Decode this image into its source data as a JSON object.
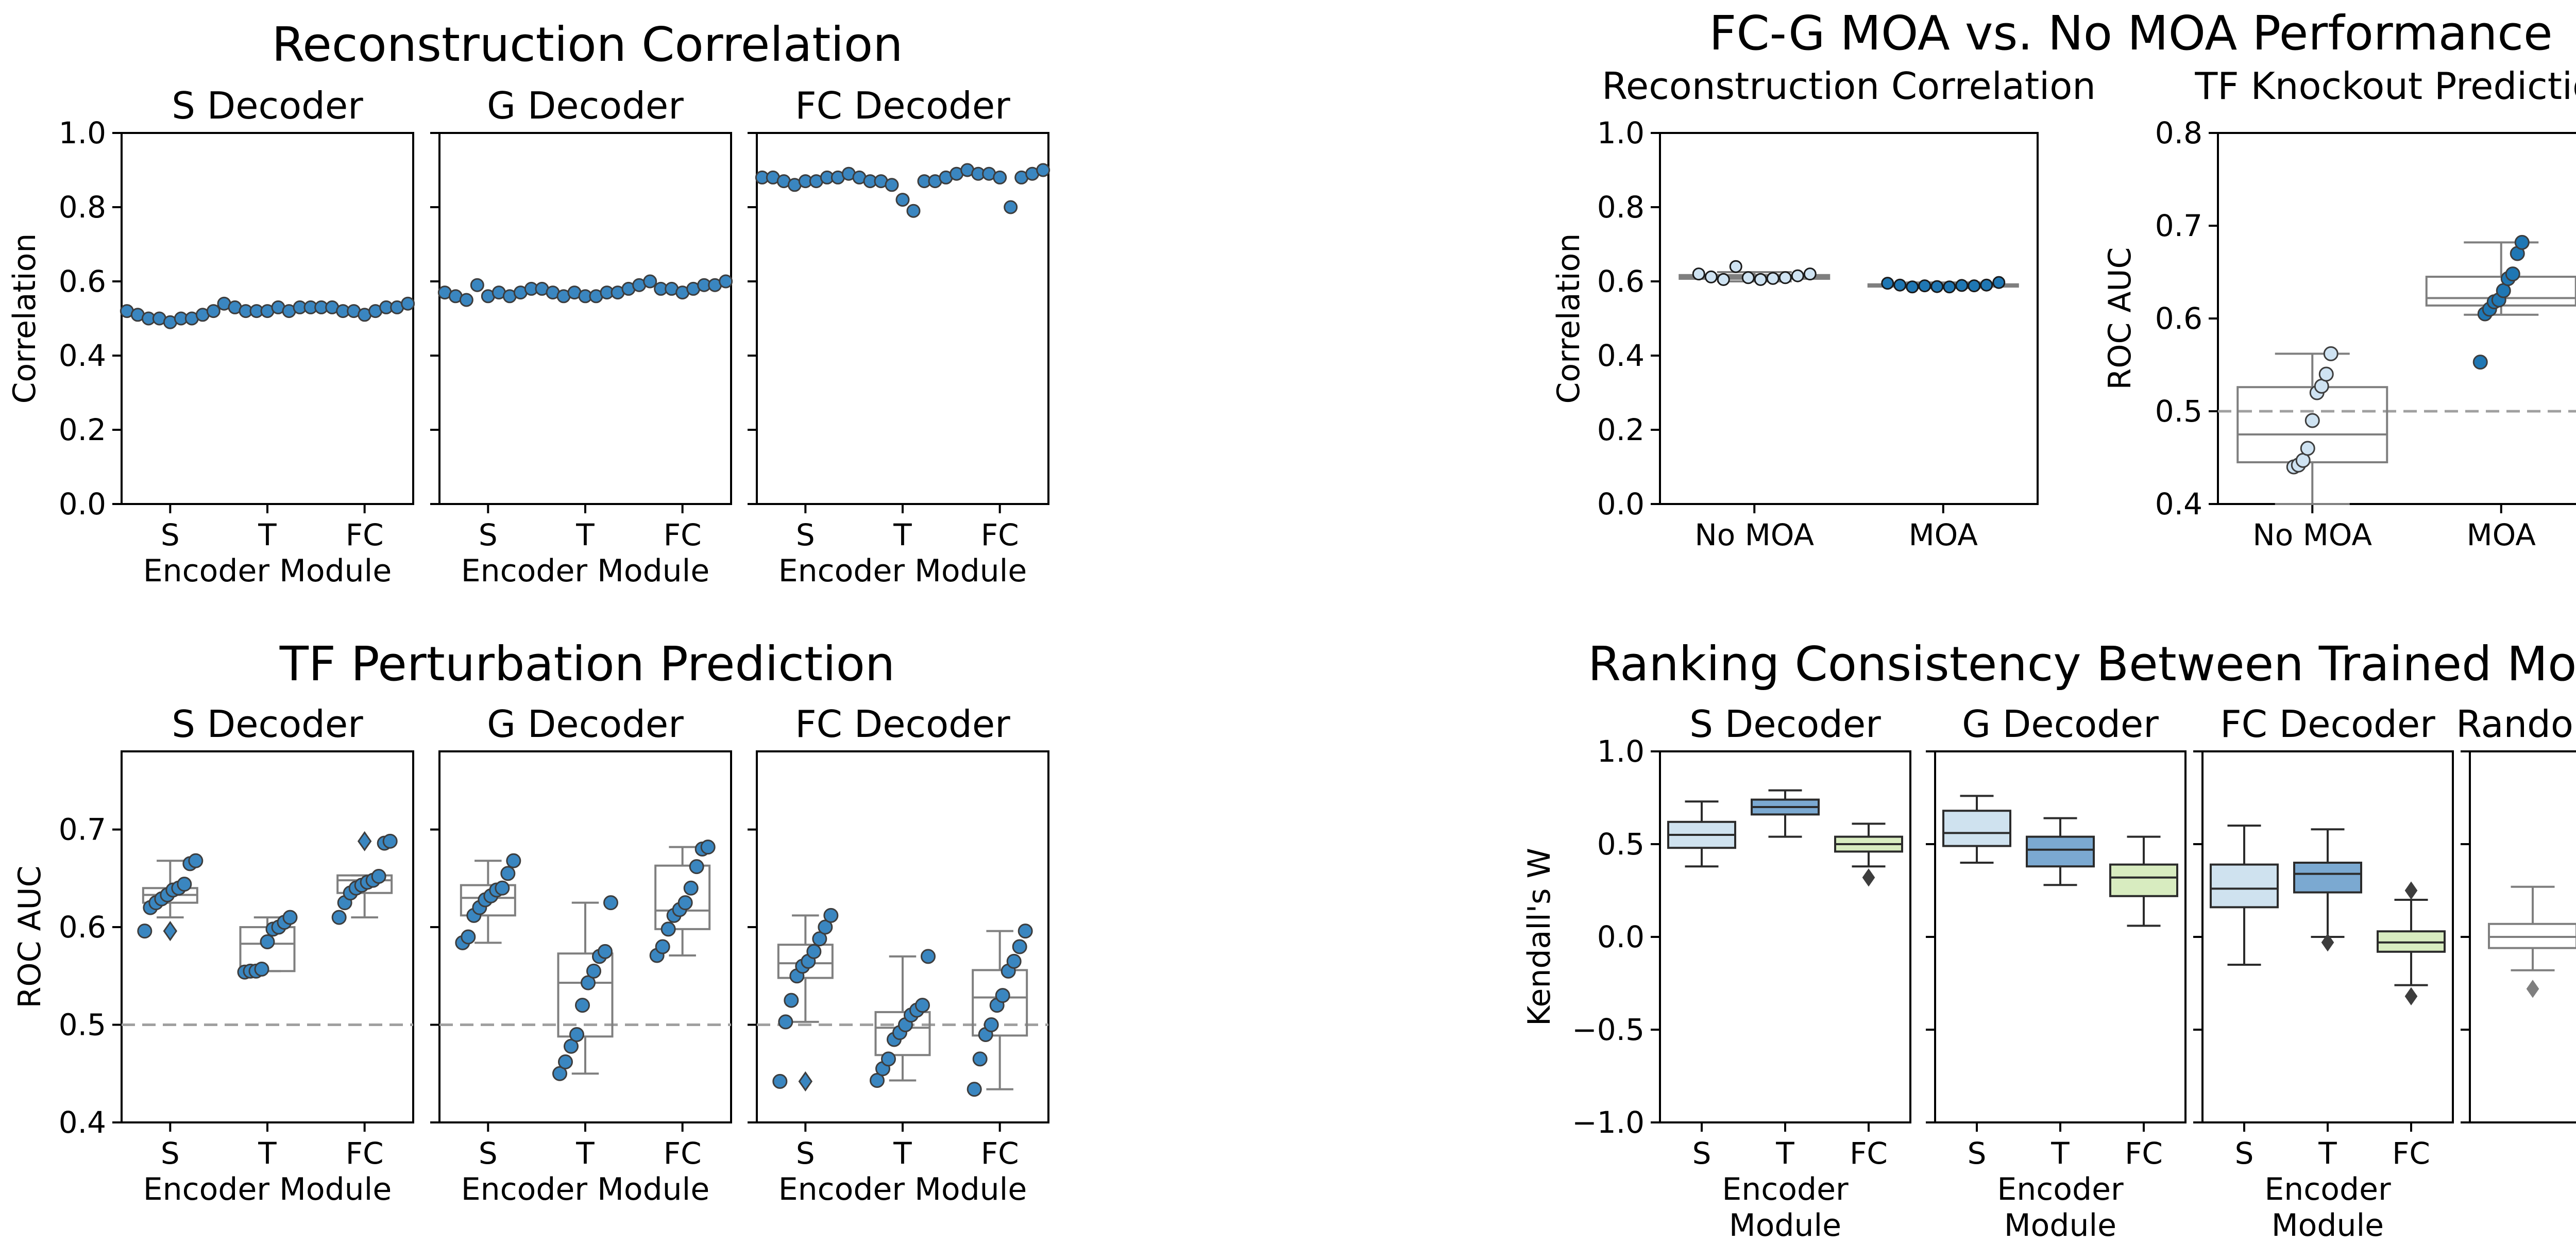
{
  "chart_data": [
    {
      "group": "Reconstruction Correlation",
      "type": "scatter",
      "title": "Reconstruction Correlation",
      "ylabel": "Correlation",
      "xlabel": "Encoder Module",
      "ylim": [
        0,
        1
      ],
      "yticks": [
        "0.0",
        "0.2",
        "0.4",
        "0.6",
        "0.8",
        "1.0"
      ],
      "yticks_values": [
        0,
        0.2,
        0.4,
        0.6,
        0.8,
        1.0
      ],
      "panels": [
        {
          "name": "S Decoder",
          "categories": [
            "S",
            "T",
            "FC"
          ],
          "points": [
            [
              0.52,
              0.51,
              0.5,
              0.5,
              0.49,
              0.5,
              0.5,
              0.51,
              0.52
            ],
            [
              0.54,
              0.53,
              0.52,
              0.52,
              0.52,
              0.53,
              0.52,
              0.53,
              0.53
            ],
            [
              0.53,
              0.53,
              0.52,
              0.52,
              0.51,
              0.52,
              0.53,
              0.53,
              0.54
            ]
          ]
        },
        {
          "name": "G Decoder",
          "categories": [
            "S",
            "T",
            "FC"
          ],
          "points": [
            [
              0.57,
              0.56,
              0.55,
              0.59,
              0.56,
              0.57,
              0.56,
              0.57,
              0.58
            ],
            [
              0.58,
              0.57,
              0.56,
              0.57,
              0.56,
              0.56,
              0.57,
              0.57,
              0.58
            ],
            [
              0.59,
              0.6,
              0.58,
              0.58,
              0.57,
              0.58,
              0.59,
              0.59,
              0.6
            ]
          ]
        },
        {
          "name": "FC Decoder",
          "categories": [
            "S",
            "T",
            "FC"
          ],
          "points": [
            [
              0.88,
              0.88,
              0.87,
              0.86,
              0.87,
              0.87,
              0.88,
              0.88,
              0.89
            ],
            [
              0.88,
              0.87,
              0.87,
              0.86,
              0.82,
              0.79,
              0.87,
              0.87,
              0.88
            ],
            [
              0.89,
              0.9,
              0.89,
              0.89,
              0.88,
              0.8,
              0.88,
              0.89,
              0.9
            ]
          ]
        }
      ]
    },
    {
      "group": "TF Perturbation Prediction",
      "type": "box",
      "title": "TF Perturbation Prediction",
      "ylabel": "ROC AUC",
      "xlabel": "Encoder Module",
      "ylim": [
        0.4,
        0.78
      ],
      "yticks": [
        "0.4",
        "0.5",
        "0.6",
        "0.7"
      ],
      "yticks_values": [
        0.4,
        0.5,
        0.6,
        0.7
      ],
      "reference_line": 0.5,
      "panels": [
        {
          "name": "S Decoder",
          "categories": [
            "S",
            "T",
            "FC"
          ],
          "boxes": [
            {
              "whislo": 0.61,
              "q1": 0.625,
              "med": 0.633,
              "q3": 0.64,
              "whishi": 0.668
            },
            {
              "whislo": 0.555,
              "q1": 0.555,
              "med": 0.583,
              "q3": 0.6,
              "whishi": 0.61
            },
            {
              "whislo": 0.61,
              "q1": 0.635,
              "med": 0.648,
              "q3": 0.653,
              "whishi": 0.653
            }
          ],
          "fliers": [
            [
              0.596
            ],
            [],
            [
              0.688
            ]
          ],
          "points": [
            [
              0.668,
              0.665,
              0.644,
              0.64,
              0.638,
              0.633,
              0.629,
              0.625,
              0.62,
              0.596
            ],
            [
              0.61,
              0.605,
              0.6,
              0.598,
              0.585,
              0.557,
              0.555,
              0.555,
              0.554
            ],
            [
              0.688,
              0.686,
              0.652,
              0.648,
              0.646,
              0.643,
              0.64,
              0.635,
              0.625,
              0.61
            ]
          ]
        },
        {
          "name": "G Decoder",
          "categories": [
            "S",
            "T",
            "FC"
          ],
          "boxes": [
            {
              "whislo": 0.584,
              "q1": 0.612,
              "med": 0.63,
              "q3": 0.643,
              "whishi": 0.668
            },
            {
              "whislo": 0.45,
              "q1": 0.488,
              "med": 0.543,
              "q3": 0.573,
              "whishi": 0.625
            },
            {
              "whislo": 0.571,
              "q1": 0.598,
              "med": 0.617,
              "q3": 0.663,
              "whishi": 0.682
            }
          ],
          "fliers": [
            [],
            [],
            []
          ],
          "points": [
            [
              0.668,
              0.655,
              0.64,
              0.638,
              0.632,
              0.628,
              0.62,
              0.612,
              0.59,
              0.584
            ],
            [
              0.625,
              0.575,
              0.57,
              0.555,
              0.543,
              0.52,
              0.49,
              0.478,
              0.462,
              0.45
            ],
            [
              0.682,
              0.68,
              0.662,
              0.64,
              0.625,
              0.618,
              0.612,
              0.598,
              0.58,
              0.571
            ]
          ]
        },
        {
          "name": "FC Decoder",
          "categories": [
            "S",
            "T",
            "FC"
          ],
          "boxes": [
            {
              "whislo": 0.503,
              "q1": 0.548,
              "med": 0.563,
              "q3": 0.582,
              "whishi": 0.612
            },
            {
              "whislo": 0.443,
              "q1": 0.469,
              "med": 0.497,
              "q3": 0.513,
              "whishi": 0.57
            },
            {
              "whislo": 0.434,
              "q1": 0.489,
              "med": 0.528,
              "q3": 0.556,
              "whishi": 0.596
            }
          ],
          "fliers": [
            [
              0.442
            ],
            [],
            []
          ],
          "points": [
            [
              0.612,
              0.6,
              0.588,
              0.575,
              0.565,
              0.56,
              0.55,
              0.525,
              0.503,
              0.442
            ],
            [
              0.57,
              0.52,
              0.515,
              0.51,
              0.5,
              0.492,
              0.485,
              0.465,
              0.455,
              0.443
            ],
            [
              0.596,
              0.58,
              0.565,
              0.555,
              0.53,
              0.52,
              0.5,
              0.49,
              0.465,
              0.434
            ]
          ]
        }
      ]
    },
    {
      "group": "FC-G MOA vs. No MOA Performance",
      "type": "box",
      "title": "FC-G MOA vs. No MOA Performance",
      "panels": [
        {
          "name": "Reconstruction Correlation",
          "ylabel": "Correlation",
          "ylim": [
            0,
            1
          ],
          "yticks": [
            "0.0",
            "0.2",
            "0.4",
            "0.6",
            "0.8",
            "1.0"
          ],
          "yticks_values": [
            0,
            0.2,
            0.4,
            0.6,
            0.8,
            1.0
          ],
          "categories": [
            "No MOA",
            "MOA"
          ],
          "point_colors": [
            "#cfe3f2",
            "#1f77b4"
          ],
          "boxes": [
            {
              "whislo": 0.6,
              "q1": 0.607,
              "med": 0.612,
              "q3": 0.617,
              "whishi": 0.625
            },
            {
              "whislo": 0.582,
              "q1": 0.586,
              "med": 0.589,
              "q3": 0.592,
              "whishi": 0.597
            }
          ],
          "points": [
            [
              0.62,
              0.612,
              0.605,
              0.64,
              0.61,
              0.605,
              0.608,
              0.61,
              0.615,
              0.62
            ],
            [
              0.595,
              0.59,
              0.585,
              0.588,
              0.586,
              0.585,
              0.589,
              0.588,
              0.59,
              0.597
            ]
          ]
        },
        {
          "name": "TF Knockout Prediction",
          "ylabel": "ROC AUC",
          "ylim": [
            0.4,
            0.8
          ],
          "yticks": [
            "0.4",
            "0.5",
            "0.6",
            "0.7",
            "0.8"
          ],
          "yticks_values": [
            0.4,
            0.5,
            0.6,
            0.7,
            0.8
          ],
          "reference_line": 0.5,
          "categories": [
            "No MOA",
            "MOA"
          ],
          "point_colors": [
            "#cfe3f2",
            "#1f77b4"
          ],
          "boxes": [
            {
              "whislo": 0.4,
              "q1": 0.445,
              "med": 0.475,
              "q3": 0.526,
              "whishi": 0.562
            },
            {
              "whislo": 0.604,
              "q1": 0.614,
              "med": 0.622,
              "q3": 0.645,
              "whishi": 0.682
            }
          ],
          "points": [
            [
              0.562,
              0.54,
              0.527,
              0.52,
              0.49,
              0.46,
              0.447,
              0.442,
              0.44
            ],
            [
              0.682,
              0.67,
              0.648,
              0.643,
              0.63,
              0.62,
              0.618,
              0.61,
              0.605,
              0.553
            ]
          ]
        }
      ]
    },
    {
      "group": "Ranking Consistency Between Trained Models",
      "type": "box",
      "title": "Ranking Consistency Between Trained Models",
      "ylabel": "Kendall's W",
      "xlabel": [
        "Encoder",
        "Module"
      ],
      "ylim": [
        -1.0,
        1.0
      ],
      "yticks": [
        "−1.0",
        "−0.5",
        "0.0",
        "0.5",
        "1.0"
      ],
      "yticks_values": [
        -1.0,
        -0.5,
        0.0,
        0.5,
        1.0
      ],
      "box_colors": {
        "S": "#cfe2ef",
        "T": "#7ba9d1",
        "FC": "#d8ecc0",
        "Random": "#ffffff"
      },
      "panels": [
        {
          "name": "S Decoder",
          "categories": [
            "S",
            "T",
            "FC"
          ],
          "boxes": [
            {
              "whislo": 0.38,
              "q1": 0.48,
              "med": 0.55,
              "q3": 0.62,
              "whishi": 0.73
            },
            {
              "whislo": 0.54,
              "q1": 0.66,
              "med": 0.7,
              "q3": 0.74,
              "whishi": 0.79
            },
            {
              "whislo": 0.38,
              "q1": 0.46,
              "med": 0.5,
              "q3": 0.54,
              "whishi": 0.61
            }
          ],
          "fliers": [
            [],
            [],
            [
              0.32
            ]
          ]
        },
        {
          "name": "G Decoder",
          "categories": [
            "S",
            "T",
            "FC"
          ],
          "boxes": [
            {
              "whislo": 0.4,
              "q1": 0.49,
              "med": 0.56,
              "q3": 0.68,
              "whishi": 0.76
            },
            {
              "whislo": 0.28,
              "q1": 0.38,
              "med": 0.47,
              "q3": 0.54,
              "whishi": 0.64
            },
            {
              "whislo": 0.06,
              "q1": 0.22,
              "med": 0.32,
              "q3": 0.39,
              "whishi": 0.54
            }
          ],
          "fliers": [
            [],
            [],
            []
          ]
        },
        {
          "name": "FC Decoder",
          "categories": [
            "S",
            "T",
            "FC"
          ],
          "boxes": [
            {
              "whislo": -0.15,
              "q1": 0.16,
              "med": 0.26,
              "q3": 0.39,
              "whishi": 0.6
            },
            {
              "whislo": 0.0,
              "q1": 0.24,
              "med": 0.34,
              "q3": 0.4,
              "whishi": 0.58
            },
            {
              "whislo": -0.26,
              "q1": -0.08,
              "med": -0.03,
              "q3": 0.03,
              "whishi": 0.2
            }
          ],
          "fliers": [
            [],
            [
              -0.03
            ],
            [
              0.25,
              -0.32
            ]
          ]
        },
        {
          "name": "Random",
          "categories": [],
          "boxes": [
            {
              "whislo": -0.18,
              "q1": -0.06,
              "med": 0.0,
              "q3": 0.07,
              "whishi": 0.27
            }
          ],
          "fliers": [
            [
              -0.28
            ]
          ]
        }
      ]
    }
  ]
}
